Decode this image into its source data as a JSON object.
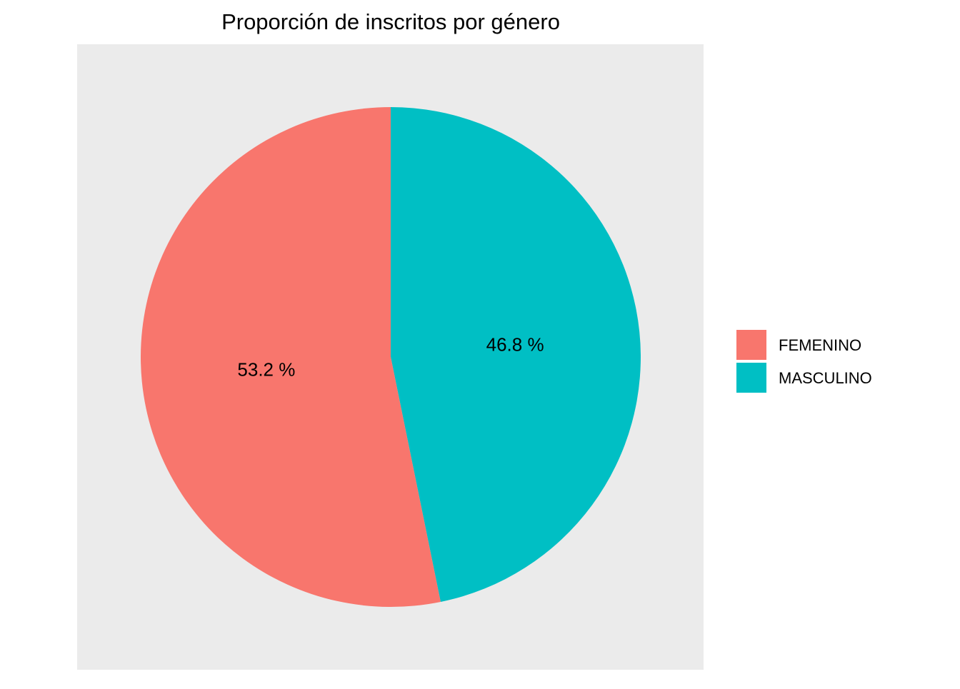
{
  "chart_data": {
    "type": "pie",
    "title": "Proporción de inscritos por género",
    "slices": [
      {
        "label": "FEMENINO",
        "value": 53.2,
        "display": "53.2 %",
        "color": "#F8766D"
      },
      {
        "label": "MASCULINO",
        "value": 46.8,
        "display": "46.8 %",
        "color": "#00BFC4"
      }
    ],
    "legend_position": "right",
    "panel_background": "#EBEBEB",
    "start": "top",
    "direction": "counterclockwise"
  }
}
